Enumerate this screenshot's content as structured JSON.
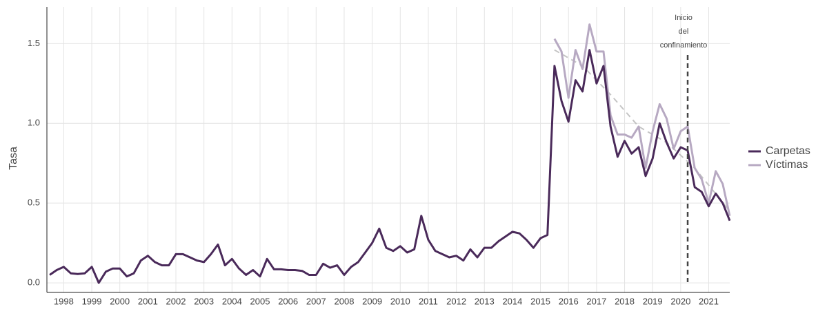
{
  "chart_data": {
    "type": "line",
    "y_label": "Tasa",
    "x": [
      1997.5,
      1997.75,
      1998,
      1998.25,
      1998.5,
      1998.75,
      1999,
      1999.25,
      1999.5,
      1999.75,
      2000,
      2000.25,
      2000.5,
      2000.75,
      2001,
      2001.25,
      2001.5,
      2001.75,
      2002,
      2002.25,
      2002.5,
      2002.75,
      2003,
      2003.25,
      2003.5,
      2003.75,
      2004,
      2004.25,
      2004.5,
      2004.75,
      2005,
      2005.25,
      2005.5,
      2005.75,
      2006,
      2006.25,
      2006.5,
      2006.75,
      2007,
      2007.25,
      2007.5,
      2007.75,
      2008,
      2008.25,
      2008.5,
      2008.75,
      2009,
      2009.25,
      2009.5,
      2009.75,
      2010,
      2010.25,
      2010.5,
      2010.75,
      2011,
      2011.25,
      2011.5,
      2011.75,
      2012,
      2012.25,
      2012.5,
      2012.75,
      2013,
      2013.25,
      2013.5,
      2013.75,
      2014,
      2014.25,
      2014.5,
      2014.75,
      2015,
      2015.25,
      2015.5,
      2015.75,
      2016,
      2016.25,
      2016.5,
      2016.75,
      2017,
      2017.25,
      2017.5,
      2017.75,
      2018,
      2018.25,
      2018.5,
      2018.75,
      2019,
      2019.25,
      2019.5,
      2019.75,
      2020,
      2020.25,
      2020.5,
      2020.75,
      2021,
      2021.25,
      2021.5,
      2021.75
    ],
    "series": [
      {
        "name": "Carpetas",
        "color": "#4a2a5a",
        "values": [
          0.05,
          0.08,
          0.1,
          0.06,
          0.055,
          0.06,
          0.1,
          0.0,
          0.07,
          0.09,
          0.09,
          0.04,
          0.06,
          0.14,
          0.17,
          0.13,
          0.11,
          0.11,
          0.18,
          0.18,
          0.16,
          0.14,
          0.13,
          0.18,
          0.24,
          0.11,
          0.15,
          0.09,
          0.05,
          0.08,
          0.04,
          0.15,
          0.085,
          0.085,
          0.08,
          0.08,
          0.075,
          0.05,
          0.05,
          0.12,
          0.095,
          0.11,
          0.05,
          0.1,
          0.13,
          0.19,
          0.25,
          0.34,
          0.22,
          0.2,
          0.23,
          0.19,
          0.21,
          0.42,
          0.27,
          0.2,
          0.18,
          0.16,
          0.17,
          0.14,
          0.21,
          0.16,
          0.22,
          0.22,
          0.26,
          0.29,
          0.32,
          0.31,
          0.27,
          0.22,
          0.28,
          0.3,
          1.36,
          1.14,
          1.01,
          1.27,
          1.2,
          1.46,
          1.25,
          1.36,
          0.98,
          0.79,
          0.89,
          0.81,
          0.85,
          0.67,
          0.78,
          1.0,
          0.88,
          0.78,
          0.85,
          0.83,
          0.6,
          0.57,
          0.48,
          0.56,
          0.5,
          0.39
        ]
      },
      {
        "name": "Víctimas",
        "color": "#b7a9c2",
        "values": [
          null,
          null,
          null,
          null,
          null,
          null,
          null,
          null,
          null,
          null,
          null,
          null,
          null,
          null,
          null,
          null,
          null,
          null,
          null,
          null,
          null,
          null,
          null,
          null,
          null,
          null,
          null,
          null,
          null,
          null,
          null,
          null,
          null,
          null,
          null,
          null,
          null,
          null,
          null,
          null,
          null,
          null,
          null,
          null,
          null,
          null,
          null,
          null,
          null,
          null,
          null,
          null,
          null,
          null,
          null,
          null,
          null,
          null,
          null,
          null,
          null,
          null,
          null,
          null,
          null,
          null,
          null,
          null,
          null,
          null,
          null,
          null,
          1.53,
          1.45,
          1.16,
          1.46,
          1.34,
          1.62,
          1.45,
          1.45,
          1.05,
          0.93,
          0.93,
          0.91,
          0.98,
          0.72,
          0.95,
          1.12,
          1.03,
          0.84,
          0.95,
          0.98,
          0.72,
          0.65,
          0.5,
          0.7,
          0.62,
          0.42
        ]
      }
    ],
    "trend": {
      "color": "#c4c4c4",
      "x": [
        2015.5,
        2016.5,
        2017.5,
        2018.5,
        2019.5,
        2020.5,
        2021.75
      ],
      "values": [
        1.46,
        1.36,
        1.18,
        0.98,
        0.88,
        0.72,
        0.45
      ]
    },
    "annotation": {
      "x": 2020.25,
      "lines": [
        "Inicio",
        "del",
        "confinamiento"
      ]
    },
    "xlim": [
      1997.4,
      2021.75
    ],
    "xticks": [
      1998,
      1999,
      2000,
      2001,
      2002,
      2003,
      2004,
      2005,
      2006,
      2007,
      2008,
      2009,
      2010,
      2011,
      2012,
      2013,
      2014,
      2015,
      2016,
      2017,
      2018,
      2019,
      2020,
      2021
    ],
    "ylim": [
      -0.06,
      1.73
    ],
    "yticks": [
      {
        "value": 0,
        "label": "0.0"
      },
      0.5,
      {
        "value": 1,
        "label": "1.0"
      },
      1.5
    ],
    "grid": true,
    "legend": "right"
  }
}
